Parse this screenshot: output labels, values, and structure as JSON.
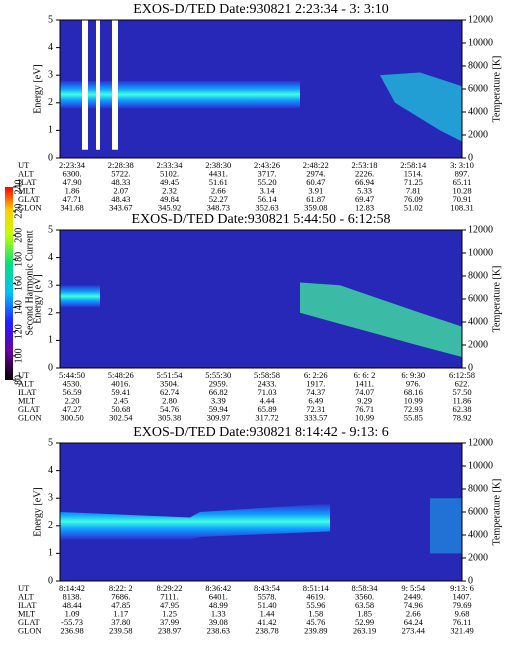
{
  "colorbar": {
    "label": "Second Harmonic Current",
    "ticks": [
      80,
      100,
      120,
      140,
      160,
      180,
      200,
      220,
      240
    ]
  },
  "panels": [
    {
      "title": "EXOS-D/TED   Date:930821  2:23:34 - 3: 3:10",
      "ylabel": "Energy [eV]",
      "y2label": "Temperature [K]",
      "yticks": [
        0,
        1,
        2,
        3,
        4,
        5
      ],
      "y2ticks": [
        0,
        2000,
        4000,
        6000,
        8000,
        10000,
        12000
      ],
      "rows": [
        [
          "UT",
          "2:23:34",
          "2:28:38",
          "2:33:34",
          "2:38:30",
          "2:43:26",
          "2:48:22",
          "2:53:18",
          "2:58:14",
          "3: 3:10"
        ],
        [
          "ALT",
          "6300.",
          "5722.",
          "5102.",
          "4431.",
          "3717.",
          "2974.",
          "2226.",
          "1514.",
          "897."
        ],
        [
          "ILAT",
          "47.90",
          "48.33",
          "49.45",
          "51.61",
          "55.20",
          "60.47",
          "66.94",
          "71.25",
          "65.11"
        ],
        [
          "MLT",
          "1.86",
          "2.07",
          "2.32",
          "2.66",
          "3.14",
          "3.91",
          "5.33",
          "7.81",
          "10.28"
        ],
        [
          "GLAT",
          "47.71",
          "48.43",
          "49.84",
          "52.27",
          "56.14",
          "61.87",
          "69.47",
          "76.09",
          "70.91"
        ],
        [
          "GLON",
          "341.68",
          "343.67",
          "345.92",
          "348.73",
          "352.63",
          "359.08",
          "12.83",
          "51.02",
          "108.31"
        ]
      ]
    },
    {
      "title": "EXOS-D/TED   Date:930821  5:44:50 - 6:12:58",
      "ylabel": "Energy [eV]",
      "y2label": "Temperature [K]",
      "yticks": [
        0,
        1,
        2,
        3,
        4,
        5
      ],
      "y2ticks": [
        0,
        2000,
        4000,
        6000,
        8000,
        10000,
        12000
      ],
      "rows": [
        [
          "UT",
          "5:44:50",
          "5:48:26",
          "5:51:54",
          "5:55:30",
          "5:58:58",
          "6: 2:26",
          "6: 6: 2",
          "6: 9:30",
          "6:12:58"
        ],
        [
          "ALT",
          "4530.",
          "4016.",
          "3504.",
          "2959.",
          "2433.",
          "1917.",
          "1411.",
          "976.",
          "622."
        ],
        [
          "ILAT",
          "56.59",
          "59.41",
          "62.74",
          "66.82",
          "71.03",
          "74.37",
          "74.07",
          "68.16",
          "57.50"
        ],
        [
          "MLT",
          "2.20",
          "2.45",
          "2.80",
          "3.39",
          "4.44",
          "6.49",
          "9.29",
          "10.99",
          "11.86"
        ],
        [
          "GLAT",
          "47.27",
          "50.68",
          "54.76",
          "59.94",
          "65.89",
          "72.31",
          "76.71",
          "72.93",
          "62.38"
        ],
        [
          "GLON",
          "300.50",
          "302.54",
          "305.38",
          "309.97",
          "317.72",
          "333.57",
          "10.99",
          "55.85",
          "78.92"
        ]
      ]
    },
    {
      "title": "EXOS-D/TED   Date:930821  8:14:42 - 9:13: 6",
      "ylabel": "Energy [eV]",
      "y2label": "Temperature [K]",
      "yticks": [
        0,
        1,
        2,
        3,
        4,
        5
      ],
      "y2ticks": [
        0,
        2000,
        4000,
        6000,
        8000,
        10000,
        12000
      ],
      "rows": [
        [
          "UT",
          "8:14:42",
          "8:22: 2",
          "8:29:22",
          "8:36:42",
          "8:43:54",
          "8:51:14",
          "8:58:34",
          "9: 5:54",
          "9:13: 6"
        ],
        [
          "ALT",
          "8138.",
          "7686.",
          "7111.",
          "6401.",
          "5578.",
          "4619.",
          "3560.",
          "2449.",
          "1407."
        ],
        [
          "ILAT",
          "48.44",
          "47.85",
          "47.95",
          "48.99",
          "51.40",
          "55.96",
          "63.58",
          "74.96",
          "79.69"
        ],
        [
          "MLT",
          "1.09",
          "1.17",
          "1.25",
          "1.33",
          "1.44",
          "1.58",
          "1.85",
          "2.66",
          "9.68"
        ],
        [
          "GLAT",
          "-55.73",
          "37.80",
          "37.99",
          "39.08",
          "41.42",
          "45.76",
          "52.99",
          "64.24",
          "76.11"
        ],
        [
          "GLON",
          "236.98",
          "239.58",
          "238.97",
          "238.63",
          "238.78",
          "239.89",
          "263.19",
          "273.44",
          "321.49"
        ]
      ]
    }
  ]
}
